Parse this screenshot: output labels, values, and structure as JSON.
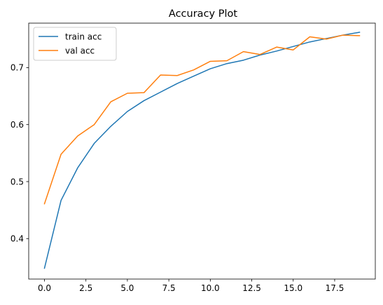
{
  "chart_data": {
    "type": "line",
    "title": "Accuracy Plot",
    "xlabel": "",
    "ylabel": "",
    "xlim": [
      -0.95,
      19.95
    ],
    "ylim": [
      0.329,
      0.778
    ],
    "xticks": [
      0.0,
      2.5,
      5.0,
      7.5,
      10.0,
      12.5,
      15.0,
      17.5
    ],
    "xtick_labels": [
      "0.0",
      "2.5",
      "5.0",
      "7.5",
      "10.0",
      "12.5",
      "15.0",
      "17.5"
    ],
    "yticks": [
      0.4,
      0.5,
      0.6,
      0.7
    ],
    "ytick_labels": [
      "0.4",
      "0.5",
      "0.6",
      "0.7"
    ],
    "grid": false,
    "legend_position": "upper-left",
    "x": [
      0,
      1,
      2,
      3,
      4,
      5,
      6,
      7,
      8,
      9,
      10,
      11,
      12,
      13,
      14,
      15,
      16,
      17,
      18,
      19
    ],
    "series": [
      {
        "name": "train acc",
        "color": "#1f77b4",
        "values": [
          0.348,
          0.467,
          0.524,
          0.567,
          0.597,
          0.623,
          0.642,
          0.657,
          0.672,
          0.685,
          0.698,
          0.707,
          0.713,
          0.722,
          0.729,
          0.737,
          0.745,
          0.751,
          0.757,
          0.762
        ]
      },
      {
        "name": "val acc",
        "color": "#ff7f0e",
        "values": [
          0.461,
          0.548,
          0.58,
          0.6,
          0.64,
          0.655,
          0.656,
          0.687,
          0.686,
          0.696,
          0.711,
          0.712,
          0.728,
          0.723,
          0.736,
          0.731,
          0.754,
          0.75,
          0.757,
          0.756
        ]
      }
    ]
  }
}
